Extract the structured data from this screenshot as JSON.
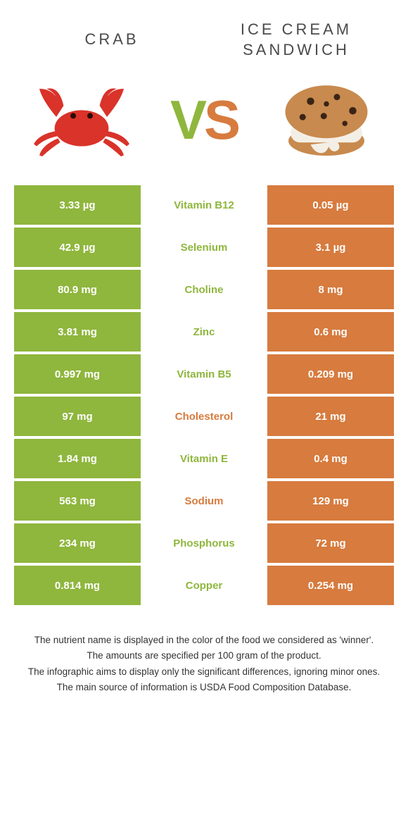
{
  "titles": {
    "left": "CRAB",
    "right": "ICE CREAM SANDWICH"
  },
  "vs": {
    "v": "V",
    "s": "S"
  },
  "colors": {
    "left_food": "#8fb63d",
    "right_food": "#d77b3e",
    "left_cell_bg": "#8fb63d",
    "right_cell_bg": "#d77b3e",
    "left_text": "#ffffff",
    "right_text": "#ffffff",
    "vs_v": "#8fb63d",
    "vs_s": "#d77b3e",
    "crab_body": "#d9332a",
    "cookie_body": "#c88a4e",
    "cookie_chip": "#3a2416",
    "cookie_cream": "#f4efe6"
  },
  "rows": [
    {
      "left": "3.33 µg",
      "label": "Vitamin B12",
      "right": "0.05 µg",
      "winner": "left"
    },
    {
      "left": "42.9 µg",
      "label": "Selenium",
      "right": "3.1 µg",
      "winner": "left"
    },
    {
      "left": "80.9 mg",
      "label": "Choline",
      "right": "8 mg",
      "winner": "left"
    },
    {
      "left": "3.81 mg",
      "label": "Zinc",
      "right": "0.6 mg",
      "winner": "left"
    },
    {
      "left": "0.997 mg",
      "label": "Vitamin B5",
      "right": "0.209 mg",
      "winner": "left"
    },
    {
      "left": "97 mg",
      "label": "Cholesterol",
      "right": "21 mg",
      "winner": "right"
    },
    {
      "left": "1.84 mg",
      "label": "Vitamin E",
      "right": "0.4 mg",
      "winner": "left"
    },
    {
      "left": "563 mg",
      "label": "Sodium",
      "right": "129 mg",
      "winner": "right"
    },
    {
      "left": "234 mg",
      "label": "Phosphorus",
      "right": "72 mg",
      "winner": "left"
    },
    {
      "left": "0.814 mg",
      "label": "Copper",
      "right": "0.254 mg",
      "winner": "left"
    }
  ],
  "footer": [
    "The nutrient name is displayed in the color of the food we considered as 'winner'.",
    "The amounts are specified per 100 gram of the product.",
    "The infographic aims to display only the significant differences, ignoring minor ones.",
    "The main source of information is USDA Food Composition Database."
  ]
}
